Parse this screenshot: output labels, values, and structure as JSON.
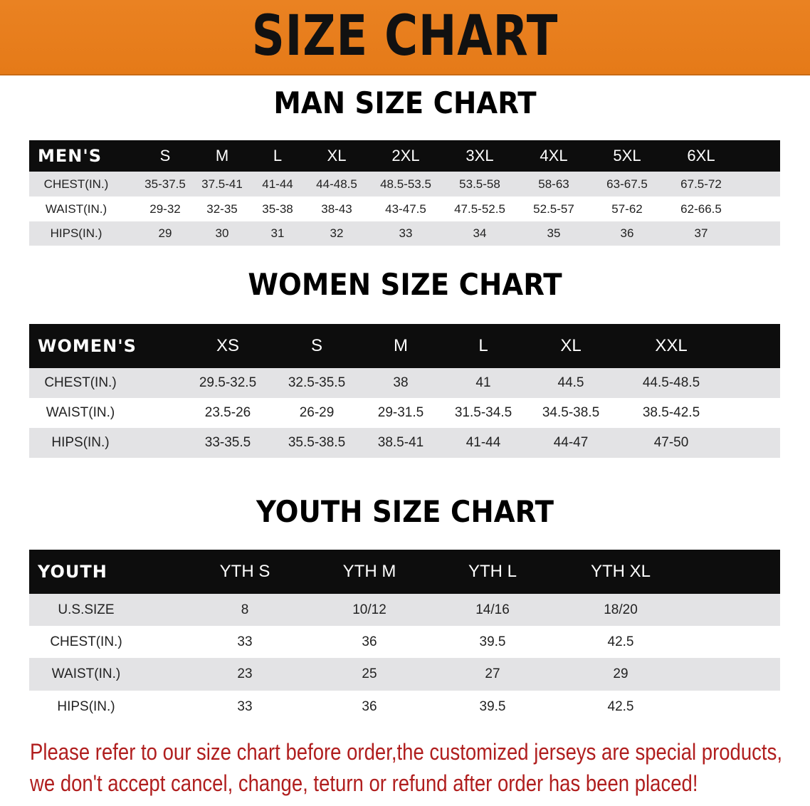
{
  "banner": {
    "title": "SIZE CHART",
    "color": "#e87e1e"
  },
  "men": {
    "title": "MAN SIZE CHART",
    "header": [
      "MEN'S",
      "S",
      "M",
      "L",
      "XL",
      "2XL",
      "3XL",
      "4XL",
      "5XL",
      "6XL"
    ],
    "rows": [
      [
        "CHEST(IN.)",
        "35-37.5",
        "37.5-41",
        "41-44",
        "44-48.5",
        "48.5-53.5",
        "53.5-58",
        "58-63",
        "63-67.5",
        "67.5-72"
      ],
      [
        "WAIST(IN.)",
        "29-32",
        "32-35",
        "35-38",
        "38-43",
        "43-47.5",
        "47.5-52.5",
        "52.5-57",
        "57-62",
        "62-66.5"
      ],
      [
        "HIPS(IN.)",
        "29",
        "30",
        "31",
        "32",
        "33",
        "34",
        "35",
        "36",
        "37"
      ]
    ]
  },
  "women": {
    "title": "WOMEN SIZE CHART",
    "header": [
      "WOMEN'S",
      "XS",
      "S",
      "M",
      "L",
      "XL",
      "XXL"
    ],
    "rows": [
      [
        "CHEST(IN.)",
        "29.5-32.5",
        "32.5-35.5",
        "38",
        "41",
        "44.5",
        "44.5-48.5"
      ],
      [
        "WAIST(IN.)",
        "23.5-26",
        "26-29",
        "29-31.5",
        "31.5-34.5",
        "34.5-38.5",
        "38.5-42.5"
      ],
      [
        "HIPS(IN.)",
        "33-35.5",
        "35.5-38.5",
        "38.5-41",
        "41-44",
        "44-47",
        "47-50"
      ]
    ]
  },
  "youth": {
    "title": "YOUTH SIZE CHART",
    "header": [
      "YOUTH",
      "YTH S",
      "YTH M",
      "YTH L",
      "YTH XL"
    ],
    "rows": [
      [
        "U.S.SIZE",
        "8",
        "10/12",
        "14/16",
        "18/20"
      ],
      [
        "CHEST(IN.)",
        "33",
        "36",
        "39.5",
        "42.5"
      ],
      [
        "WAIST(IN.)",
        "23",
        "25",
        "27",
        "29"
      ],
      [
        "HIPS(IN.)",
        "33",
        "36",
        "39.5",
        "42.5"
      ]
    ]
  },
  "notice": {
    "line1": "Please refer to our size chart before order,the customized jerseys are special products,",
    "line2": "we don't accept cancel, change, teturn or refund after order has been placed!",
    "color": "#b01e1e"
  }
}
